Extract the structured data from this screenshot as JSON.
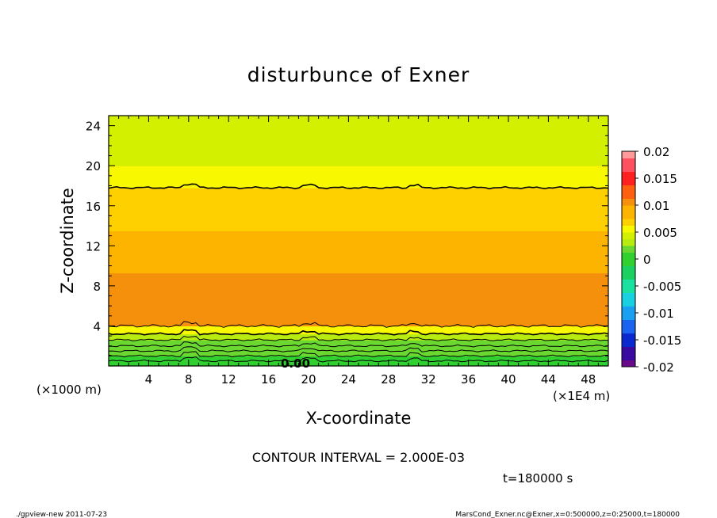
{
  "chart_data": {
    "type": "heatmap",
    "title": "disturbunce of Exner",
    "xlabel": "X-coordinate",
    "ylabel": "Z-coordinate",
    "x_unit": "(×1E4 m)",
    "y_unit": "(×1000 m)",
    "x_ticks": [
      "4",
      "8",
      "12",
      "16",
      "20",
      "24",
      "28",
      "32",
      "36",
      "40",
      "44",
      "48"
    ],
    "y_ticks": [
      "4",
      "8",
      "12",
      "16",
      "20",
      "24"
    ],
    "xlim": [
      0,
      50
    ],
    "ylim": [
      0,
      25
    ],
    "contour_interval_label": "CONTOUR INTERVAL = 2.000E-03",
    "time_label": "t=180000 s",
    "contour_label": "0.00",
    "colorbar": {
      "ticks": [
        "0.02",
        "0.015",
        "0.01",
        "0.005",
        "0",
        "-0.005",
        "-0.01",
        "-0.015",
        "-0.02"
      ],
      "range": [
        -0.02,
        0.02
      ]
    },
    "bands": [
      {
        "from": 0.0,
        "to": 0.5,
        "value": 0.0
      },
      {
        "from": 0.5,
        "to": 1.0,
        "value": 0.0005
      },
      {
        "from": 1.0,
        "to": 1.5,
        "value": 0.001
      },
      {
        "from": 1.5,
        "to": 2.0,
        "value": 0.0015
      },
      {
        "from": 2.0,
        "to": 2.6,
        "value": 0.002
      },
      {
        "from": 2.6,
        "to": 3.2,
        "value": 0.003
      },
      {
        "from": 3.2,
        "to": 4.0,
        "value": 0.0065
      },
      {
        "from": 4.0,
        "to": 9.3,
        "value": 0.0105
      },
      {
        "from": 9.3,
        "to": 13.5,
        "value": 0.0085
      },
      {
        "from": 13.5,
        "to": 17.8,
        "value": 0.0075
      },
      {
        "from": 17.8,
        "to": 20.0,
        "value": 0.0055
      },
      {
        "from": 20.0,
        "to": 25.0,
        "value": 0.0045
      }
    ]
  },
  "footer": {
    "left": "./gpview-new  2011-07-23",
    "right": "MarsCond_Exner.nc@Exner,x=0:500000,z=0:25000,t=180000"
  }
}
